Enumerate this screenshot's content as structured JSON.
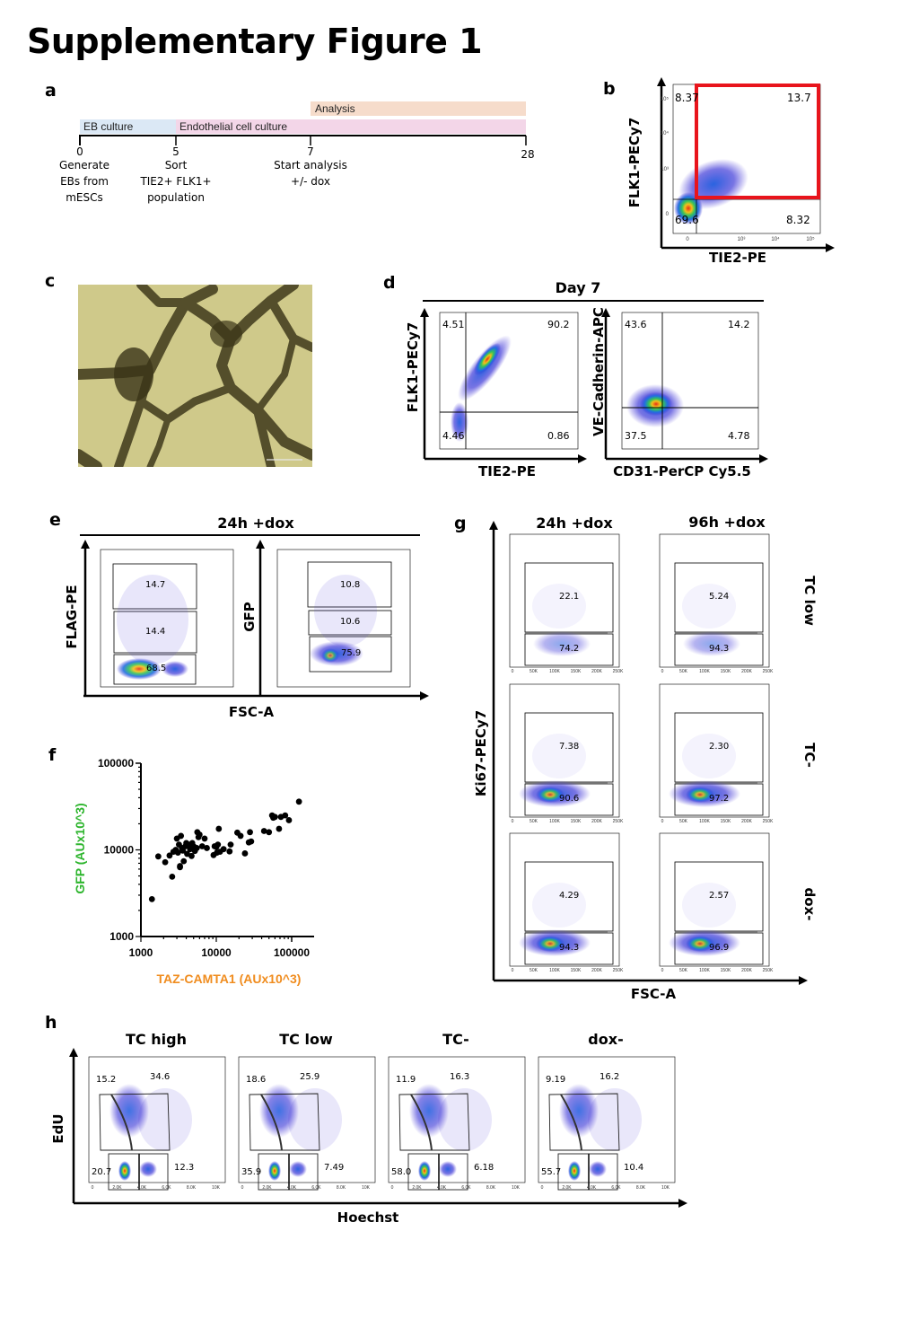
{
  "figure_title": "Supplementary Figure 1",
  "panels": {
    "a": {
      "label": "a",
      "bars": [
        {
          "label": "Analysis",
          "start": 7,
          "end": 28,
          "color": "#f6dccb"
        },
        {
          "label": "EB culture",
          "start": 0,
          "end": 5,
          "color": "#dbe8f5"
        },
        {
          "label": "Endothelial cell culture",
          "start": 5,
          "end": 28,
          "color": "#f3d6e8"
        }
      ],
      "ticks": [
        {
          "day": "0",
          "note": [
            "Generate",
            "EBs from",
            "mESCs"
          ]
        },
        {
          "day": "5",
          "note": [
            "Sort",
            "TIE2+ FLK1+",
            "population"
          ]
        },
        {
          "day": "7",
          "note": [
            "Start analysis",
            "+/- dox"
          ]
        },
        {
          "day": "28",
          "note": []
        }
      ]
    },
    "b": {
      "label": "b",
      "x_label": "TIE2-PE",
      "y_label": "FLK1-PECy7",
      "quadrants": {
        "ul": "8.37",
        "ur": "13.7",
        "ll": "69.6",
        "lr": "8.32"
      },
      "highlight_color": "#e8141c",
      "y_ticks": [
        "10^5",
        "10^4",
        "10^3",
        "0"
      ],
      "x_ticks": [
        "0",
        "10^3",
        "10^4",
        "10^5"
      ]
    },
    "c": {
      "label": "c",
      "description": "brightfield micrograph of endothelial network"
    },
    "d": {
      "label": "d",
      "header": "Day 7",
      "plots": [
        {
          "x_label": "TIE2-PE",
          "y_label": "FLK1-PECy7",
          "quadrants": {
            "ul": "4.51",
            "ur": "90.2",
            "ll": "4.46",
            "lr": "0.86"
          }
        },
        {
          "x_label": "CD31-PerCP Cy5.5",
          "y_label": "VE-Cadherin-APC",
          "quadrants": {
            "ul": "43.6",
            "ur": "14.2",
            "ll": "37.5",
            "lr": "4.78"
          }
        }
      ]
    },
    "e": {
      "label": "e",
      "header": "24h +dox",
      "x_label": "FSC-A",
      "x_ticks": [
        "0",
        "50K",
        "100K",
        "150K",
        "200K",
        "250K"
      ],
      "plots": [
        {
          "y_label": "FLAG-PE",
          "gates": [
            "14.7",
            "14.4",
            "68.5"
          ]
        },
        {
          "y_label": "GFP",
          "gates": [
            "10.8",
            "10.6",
            "75.9"
          ]
        }
      ]
    },
    "f": {
      "label": "f"
    },
    "g": {
      "label": "g",
      "columns": [
        "24h +dox",
        "96h +dox"
      ],
      "rows": [
        "TC low",
        "TC-",
        "dox-"
      ],
      "y_label": "Ki67-PECy7",
      "x_label": "FSC-A",
      "x_ticks": [
        "0",
        "50K",
        "100K",
        "150K",
        "200K",
        "250K"
      ],
      "values": [
        [
          {
            "hi": "22.1",
            "lo": "74.2"
          },
          {
            "hi": "5.24",
            "lo": "94.3"
          }
        ],
        [
          {
            "hi": "7.38",
            "lo": "90.6"
          },
          {
            "hi": "2.30",
            "lo": "97.2"
          }
        ],
        [
          {
            "hi": "4.29",
            "lo": "94.3"
          },
          {
            "hi": "2.57",
            "lo": "96.9"
          }
        ]
      ]
    },
    "h": {
      "label": "h",
      "y_label": "EdU",
      "x_label": "Hoechst",
      "x_ticks": [
        "0",
        "2.0K",
        "4.0K",
        "6.0K",
        "8.0K",
        "10K"
      ],
      "plots": [
        {
          "title": "TC high",
          "tl": "15.2",
          "tr": "34.6",
          "bl": "20.7",
          "br": "12.3"
        },
        {
          "title": "TC low",
          "tl": "18.6",
          "tr": "25.9",
          "bl": "35.9",
          "br": "7.49"
        },
        {
          "title": "TC-",
          "tl": "11.9",
          "tr": "16.3",
          "bl": "58.0",
          "br": "6.18"
        },
        {
          "title": "dox-",
          "tl": "9.19",
          "tr": "16.2",
          "bl": "55.7",
          "br": "10.4"
        }
      ]
    }
  },
  "chart_data": {
    "type": "scatter",
    "title": "",
    "xlabel": "TAZ-CAMTA1 (AUx10^3)",
    "ylabel": "GFP (AUx10^3)",
    "xscale": "log",
    "yscale": "log",
    "xlim": [
      1000,
      150000
    ],
    "ylim": [
      1000,
      100000
    ],
    "x_ticks": [
      "1000",
      "10000",
      "100000"
    ],
    "y_ticks": [
      "1000",
      "10000",
      "100000"
    ],
    "xlabel_color": "#f08c1e",
    "ylabel_color": "#2db52d",
    "points": [
      [
        1400,
        2700
      ],
      [
        1700,
        8400
      ],
      [
        2100,
        7200
      ],
      [
        2400,
        8600
      ],
      [
        2600,
        4900
      ],
      [
        2700,
        9500
      ],
      [
        2900,
        10000
      ],
      [
        3000,
        13500
      ],
      [
        3100,
        9300
      ],
      [
        3200,
        11500
      ],
      [
        3300,
        6500
      ],
      [
        3300,
        6300
      ],
      [
        3400,
        14500
      ],
      [
        3500,
        10500
      ],
      [
        3600,
        9800
      ],
      [
        3700,
        7400
      ],
      [
        3900,
        11000
      ],
      [
        4000,
        12000
      ],
      [
        4100,
        9000
      ],
      [
        4300,
        11500
      ],
      [
        4500,
        10200
      ],
      [
        4700,
        8500
      ],
      [
        4800,
        12000
      ],
      [
        5000,
        11000
      ],
      [
        5200,
        9700
      ],
      [
        5500,
        10500
      ],
      [
        5600,
        16000
      ],
      [
        5800,
        14000
      ],
      [
        6000,
        15000
      ],
      [
        6500,
        11000
      ],
      [
        7000,
        13500
      ],
      [
        7500,
        10500
      ],
      [
        9200,
        8700
      ],
      [
        9500,
        11000
      ],
      [
        10000,
        10800
      ],
      [
        10200,
        9300
      ],
      [
        10500,
        11500
      ],
      [
        10800,
        17500
      ],
      [
        11200,
        9500
      ],
      [
        12500,
        10200
      ],
      [
        15000,
        9600
      ],
      [
        15500,
        11500
      ],
      [
        19000,
        15800
      ],
      [
        21000,
        14500
      ],
      [
        24000,
        9100
      ],
      [
        27000,
        12200
      ],
      [
        28000,
        16000
      ],
      [
        29000,
        12500
      ],
      [
        43000,
        16500
      ],
      [
        50000,
        16000
      ],
      [
        55000,
        25000
      ],
      [
        57000,
        23500
      ],
      [
        60000,
        24000
      ],
      [
        68000,
        17500
      ],
      [
        72000,
        24000
      ],
      [
        82000,
        25000
      ],
      [
        92000,
        22000
      ],
      [
        125000,
        36000
      ]
    ]
  }
}
